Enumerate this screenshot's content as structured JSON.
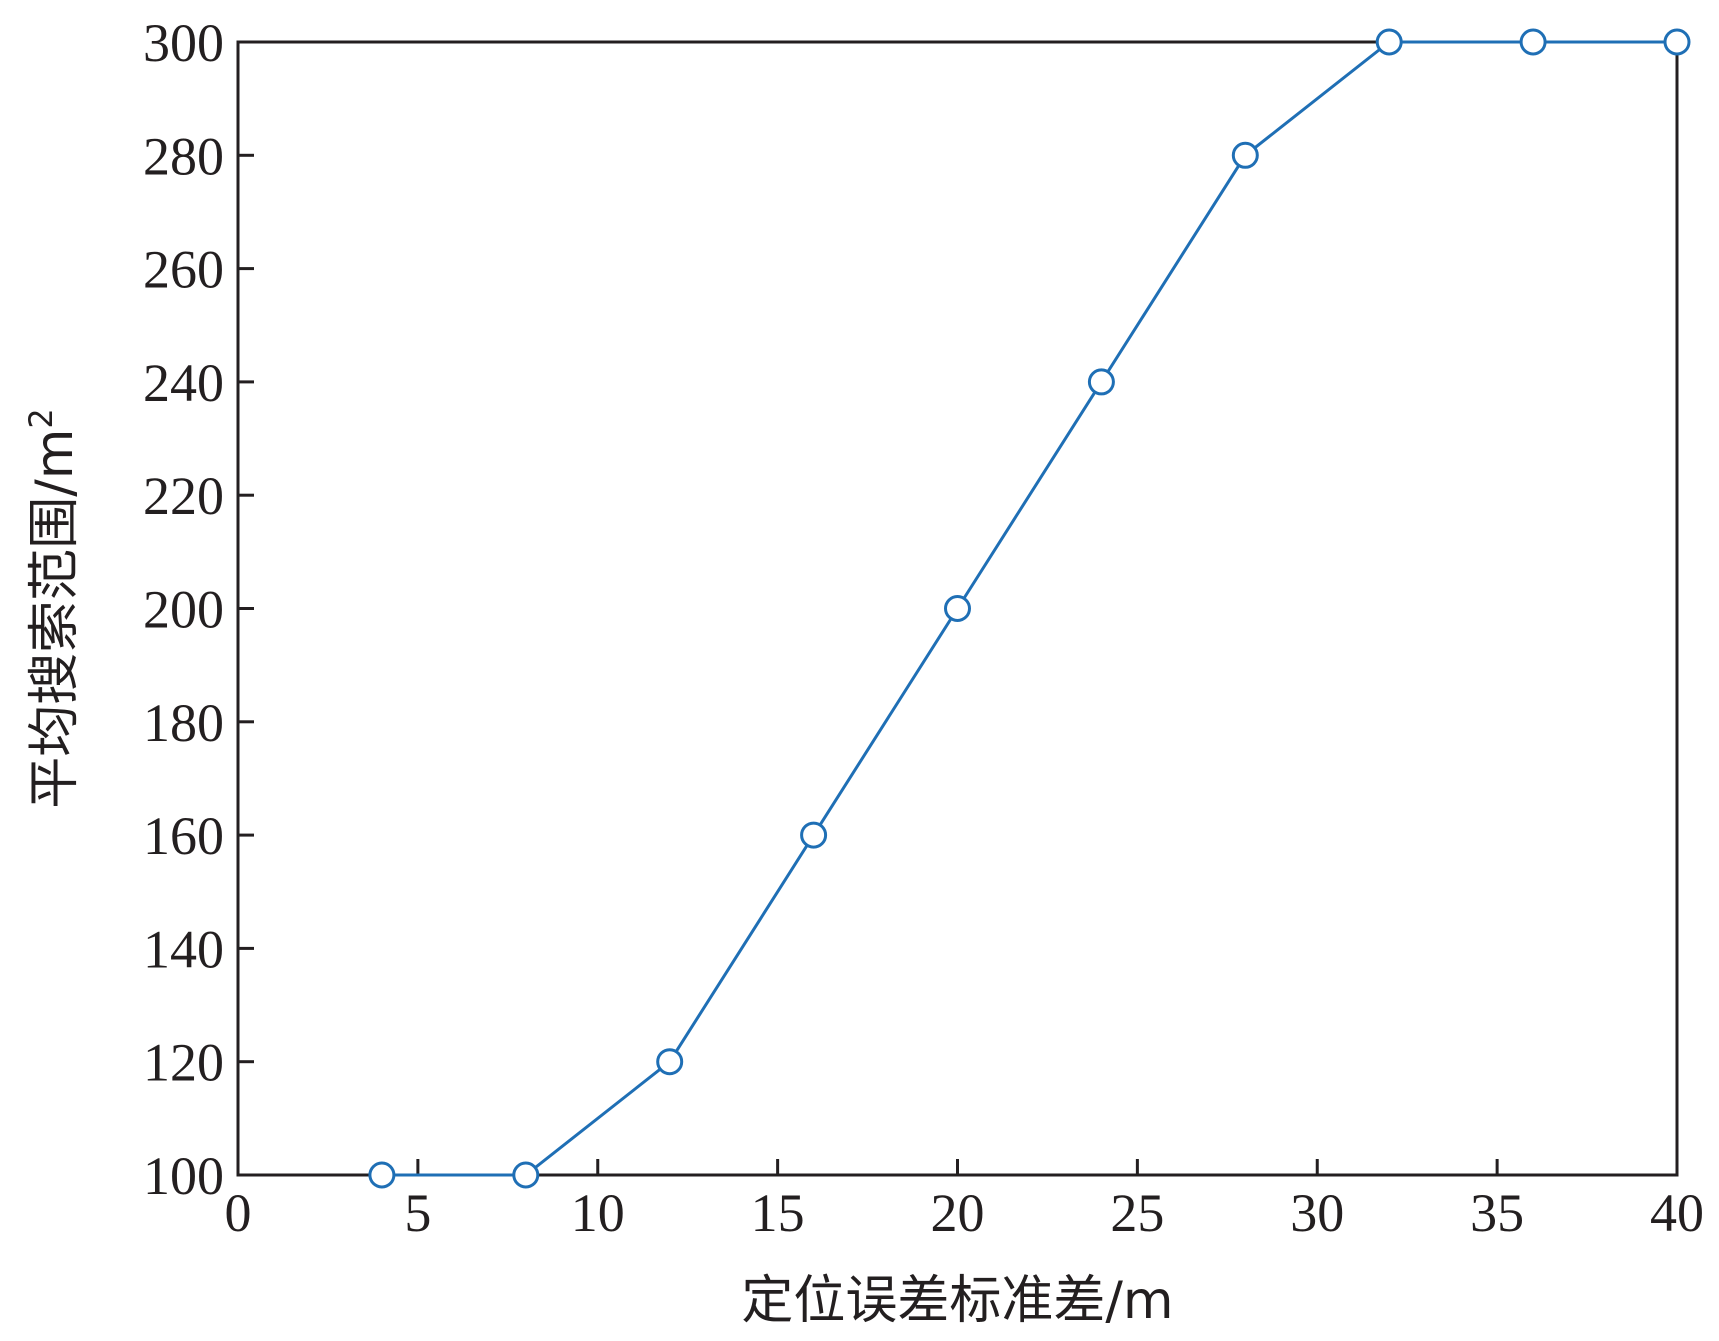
{
  "chart_data": {
    "type": "line",
    "title": "",
    "xlabel": "定位误差标准差/m",
    "ylabel": "平均搜索范围/m",
    "ylabel_superscript": "2",
    "xlim": [
      0,
      40
    ],
    "ylim": [
      100,
      300
    ],
    "xticks": [
      0,
      5,
      10,
      15,
      20,
      25,
      30,
      35,
      40
    ],
    "yticks": [
      100,
      120,
      140,
      160,
      180,
      200,
      220,
      240,
      260,
      280,
      300
    ],
    "grid": false,
    "legend": "none",
    "series": [
      {
        "color": "#1f6fb5",
        "marker": "open-circle",
        "x": [
          4,
          8,
          12,
          16,
          20,
          24,
          28,
          32,
          36,
          40
        ],
        "y": [
          100,
          100,
          120,
          160,
          200,
          240,
          280,
          300,
          300,
          300
        ]
      }
    ]
  }
}
